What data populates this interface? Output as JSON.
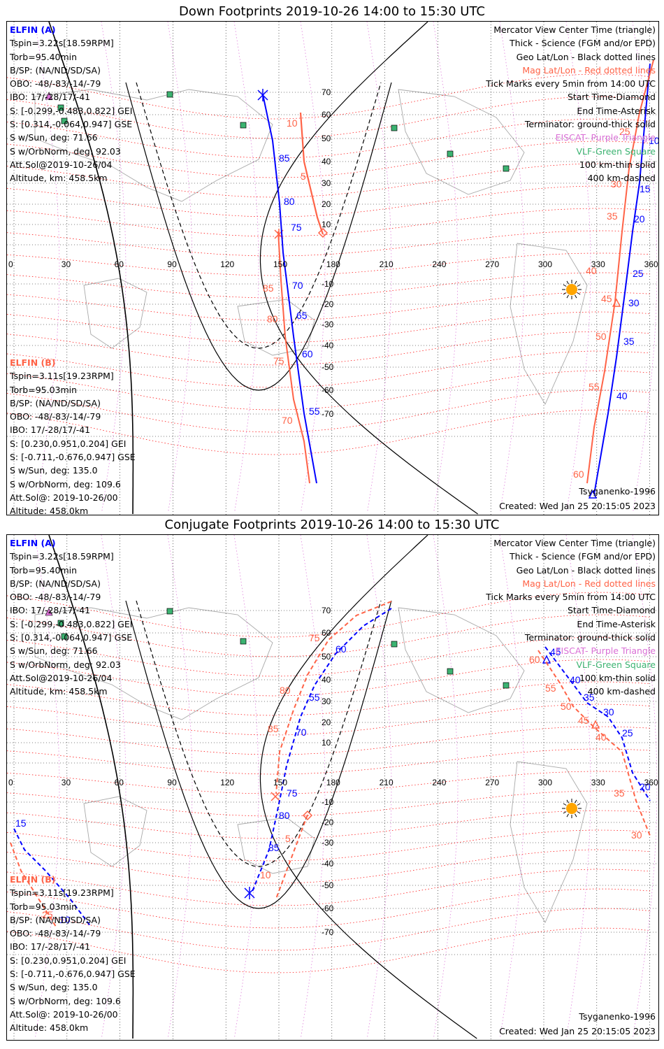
{
  "panels": [
    {
      "title": "Down Footprints 2019-10-26 14:00 to 15:30 UTC",
      "elfin_a": {
        "name": "ELFIN (A)",
        "lines": [
          "Tspin=3.22s[18.59RPM]",
          "Torb=95.40min",
          "B/SP: (NA/ND/SD/SA)",
          "OBO: -48/-83/-14/-79",
          "IBO: 17/-28/17/-41",
          "S: [-0.299,-0.483,0.822] GEI",
          "S: [0.314,-0.064,0.947] GSE",
          "S w/Sun, deg: 71.66",
          "S w/OrbNorm, deg: 92.03",
          "Att.Sol@2019-10-26/04",
          "Altitude, km: 458.5km"
        ]
      },
      "elfin_b": {
        "name": "ELFIN (B)",
        "lines": [
          "Tspin=3.11s[19.23RPM]",
          "Torb=95.03min",
          "B/SP: (NA/ND/SD/SA)",
          "OBO: -48/-83/-14/-79",
          "IBO: 17/-28/17/-41",
          "S: [0.230,0.951,0.204] GEI",
          "S: [-0.711,-0.676,0.947] GSE",
          "S w/Sun, deg: 135.0",
          "S w/OrbNorm, deg: 109.6",
          "Att.Sol@: 2019-10-26/00",
          "Altitude: 458.0km"
        ]
      },
      "legend": [
        "Mercator View Center Time (triangle)",
        "Thick - Science (FGM and/or EPD)",
        "Geo Lat/Lon - Black dotted lines",
        "Mag Lat/Lon - Red dotted lines",
        "Tick Marks every 5min from 14:00 UTC",
        "Start Time-Diamond",
        "End Time-Asterisk",
        "Terminator: ground-thick solid",
        "EISCAT- Purple Triangle",
        "VLF-Green Square",
        "100 km-thin solid",
        "400 km-dashed"
      ],
      "model": "Tsyganenko-1996",
      "created": "Created: Wed Jan 25 20:15:05 2023"
    },
    {
      "title": "Conjugate Footprints 2019-10-26 14:00 to 15:30 UTC",
      "elfin_a": {
        "name": "ELFIN (A)",
        "lines": [
          "Tspin=3.22s[18.59RPM]",
          "Torb=95.40min",
          "B/SP: (NA/ND/SD/SA)",
          "OBO: -48/-83/-14/-79",
          "IBO: 17/-28/17/-41",
          "S: [-0.299,-0.483,0.822] GEI",
          "S: [0.314,-0.064,0.947] GSE",
          "S w/Sun, deg: 71.66",
          "S w/OrbNorm, deg: 92.03",
          "Att.Sol@2019-10-26/04",
          "Altitude, km: 458.5km"
        ]
      },
      "elfin_b": {
        "name": "ELFIN (B)",
        "lines": [
          "Tspin=3.11s[19.23RPM]",
          "Torb=95.03min",
          "B/SP: (NA/ND/SD/SA)",
          "OBO: -48/-83/-14/-79",
          "IBO: 17/-28/17/-41",
          "S: [0.230,0.951,0.204] GEI",
          "S: [-0.711,-0.676,0.947] GSE",
          "S w/Sun, deg: 135.0",
          "S w/OrbNorm, deg: 109.6",
          "Att.Sol@: 2019-10-26/00",
          "Altitude: 458.0km"
        ]
      },
      "legend": [
        "Mercator View Center Time (triangle)",
        "Thick - Science (FGM and/or EPD)",
        "Geo Lat/Lon - Black dotted lines",
        "Mag Lat/Lon - Red dotted lines",
        "Tick Marks every 5min from 14:00 UTC",
        "Start Time-Diamond",
        "End Time-Asterisk",
        "Terminator: ground-thick solid",
        "EISCAT- Purple Triangle",
        "VLF-Green Square",
        "100 km-thin solid",
        "400 km-dashed"
      ],
      "model": "Tsyganenko-1996",
      "created": "Created: Wed Jan 25 20:15:05 2023"
    }
  ],
  "map": {
    "lon_ticks": [
      "0",
      "30",
      "60",
      "90",
      "120",
      "150",
      "180",
      "210",
      "240",
      "270",
      "300",
      "330",
      "360"
    ],
    "lat_ticks": [
      "70",
      "60",
      "50",
      "40",
      "30",
      "20",
      "10",
      "-10",
      "-20",
      "-30",
      "-40",
      "-50",
      "-60",
      "-70"
    ]
  },
  "colors": {
    "elfin_a": "#0000ff",
    "elfin_b": "#ff6347",
    "mag_grid": "#ff0000",
    "geo_grid": "#000000",
    "coast": "#a9a9a9",
    "eiscat": "#da70d6",
    "vlf": "#3cb371",
    "sun": "#ffa500"
  },
  "tracks": {
    "down": {
      "a_labels": [
        "85",
        "80",
        "75",
        "70",
        "65",
        "60",
        "55",
        "10",
        "15",
        "20",
        "25",
        "30",
        "35",
        "40"
      ],
      "b_labels": [
        "10",
        "5",
        "85",
        "80",
        "75",
        "70",
        "25",
        "30",
        "35",
        "40",
        "45",
        "50",
        "55",
        "60"
      ]
    },
    "conjugate": {
      "a_labels": [
        "60",
        "55",
        "70",
        "75",
        "80",
        "85",
        "15",
        "10",
        "45",
        "40",
        "35",
        "30",
        "25",
        "20"
      ],
      "b_labels": [
        "75",
        "80",
        "85",
        "5",
        "10",
        "25",
        "60",
        "55",
        "50",
        "45",
        "40",
        "35",
        "30"
      ]
    }
  }
}
